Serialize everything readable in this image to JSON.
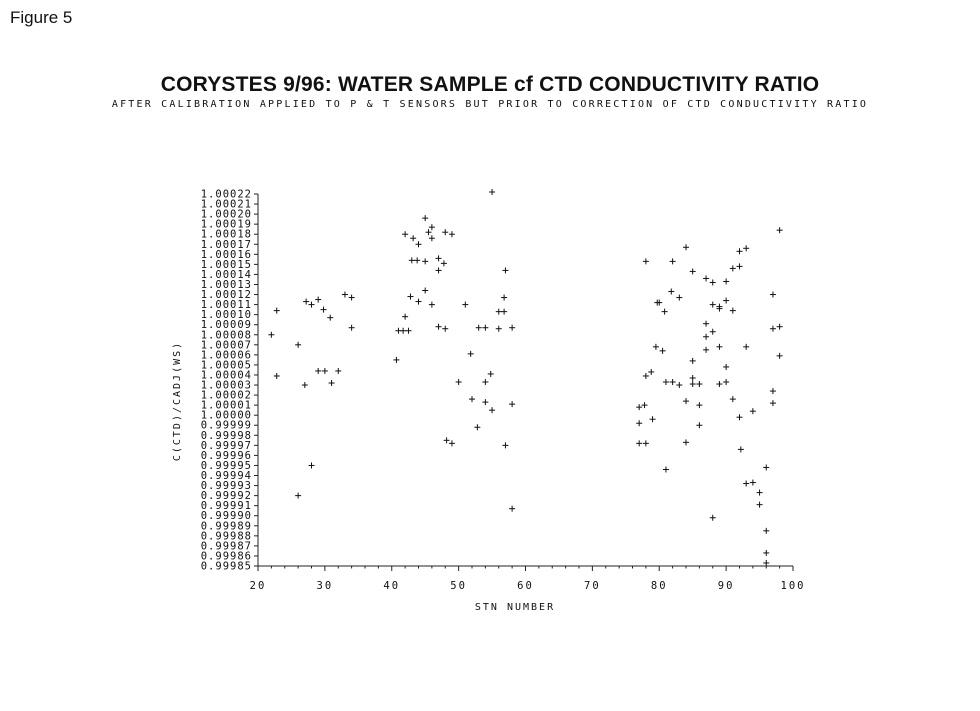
{
  "figure_label": "Figure 5",
  "chart_data": {
    "type": "scatter",
    "title": "CORYSTES 9/96: WATER SAMPLE cf CTD CONDUCTIVITY RATIO",
    "subtitle": "AFTER CALIBRATION APPLIED TO P & T SENSORS BUT PRIOR TO CORRECTION OF CTD CONDUCTIVITY RATIO",
    "xlabel": "STN NUMBER",
    "ylabel": "C(CTD)/CADJ(WS)",
    "xlim": [
      20,
      100
    ],
    "ylim": [
      0.99985,
      1.00022
    ],
    "x_ticks": [
      "20",
      "30",
      "40",
      "50",
      "60",
      "70",
      "80",
      "90",
      "100"
    ],
    "y_ticks": [
      "1.00022",
      "1.00021",
      "1.00020",
      "1.00019",
      "1.00018",
      "1.00017",
      "1.00016",
      "1.00015",
      "1.00014",
      "1.00013",
      "1.00012",
      "1.00011",
      "1.00010",
      "1.00009",
      "1.00008",
      "1.00007",
      "1.00006",
      "1.00005",
      "1.00004",
      "1.00003",
      "1.00002",
      "1.00001",
      "1.00000",
      "0.99999",
      "0.99998",
      "0.99997",
      "0.99996",
      "0.99995",
      "0.99994",
      "0.99993",
      "0.99992",
      "0.99991",
      "0.99990",
      "0.99989",
      "0.99988",
      "0.99987",
      "0.99986",
      "0.99985"
    ],
    "marker": "+",
    "grid": false,
    "points": [
      [
        22,
        1.00008
      ],
      [
        22.8,
        1.000104
      ],
      [
        22.8,
        1.000039
      ],
      [
        26,
        1.00007
      ],
      [
        26,
        0.99992
      ],
      [
        27,
        1.00003
      ],
      [
        27.2,
        1.000113
      ],
      [
        28,
        1.00011
      ],
      [
        28,
        0.99995
      ],
      [
        29,
        1.000115
      ],
      [
        29,
        1.000044
      ],
      [
        29.8,
        1.000105
      ],
      [
        30,
        1.000044
      ],
      [
        30.8,
        1.000097
      ],
      [
        31,
        1.000032
      ],
      [
        32,
        1.000044
      ],
      [
        33,
        1.00012
      ],
      [
        34,
        1.000117
      ],
      [
        34,
        1.000087
      ],
      [
        40.7,
        1.000055
      ],
      [
        41,
        1.000084
      ],
      [
        41.7,
        1.000084
      ],
      [
        42,
        1.000098
      ],
      [
        42,
        1.00018
      ],
      [
        42.5,
        1.000084
      ],
      [
        42.8,
        1.000118
      ],
      [
        43,
        1.000154
      ],
      [
        43.2,
        1.000176
      ],
      [
        43.8,
        1.000154
      ],
      [
        44,
        1.00017
      ],
      [
        44,
        1.000113
      ],
      [
        45,
        1.000153
      ],
      [
        45,
        1.000196
      ],
      [
        45,
        1.000124
      ],
      [
        45.5,
        1.000182
      ],
      [
        46,
        1.000187
      ],
      [
        46,
        1.000176
      ],
      [
        46,
        1.00011
      ],
      [
        47,
        1.000156
      ],
      [
        47,
        1.000088
      ],
      [
        47,
        1.000144
      ],
      [
        47.8,
        1.000151
      ],
      [
        48,
        1.000182
      ],
      [
        48,
        1.000086
      ],
      [
        48.2,
        0.999975
      ],
      [
        49,
        1.00018
      ],
      [
        49,
        0.999972
      ],
      [
        50,
        1.000033
      ],
      [
        51,
        1.00011
      ],
      [
        51.8,
        1.000061
      ],
      [
        52,
        1.000016
      ],
      [
        52.8,
        0.999988
      ],
      [
        53,
        1.000087
      ],
      [
        54,
        1.000087
      ],
      [
        54,
        1.000033
      ],
      [
        54,
        1.000013
      ],
      [
        54.8,
        1.000041
      ],
      [
        55,
        1.000005
      ],
      [
        55,
        1.000222
      ],
      [
        56,
        1.000086
      ],
      [
        56,
        1.000103
      ],
      [
        56.8,
        1.000103
      ],
      [
        56.8,
        1.000117
      ],
      [
        57,
        1.000144
      ],
      [
        57,
        0.99997
      ],
      [
        58,
        1.000087
      ],
      [
        58,
        1.000011
      ],
      [
        58,
        0.999907
      ],
      [
        77,
        1.000008
      ],
      [
        77,
        0.999992
      ],
      [
        77,
        0.999972
      ],
      [
        77.8,
        1.00001
      ],
      [
        78,
        1.000153
      ],
      [
        78,
        1.000039
      ],
      [
        78,
        0.999972
      ],
      [
        78.8,
        1.000043
      ],
      [
        79,
        0.999996
      ],
      [
        79.5,
        1.000068
      ],
      [
        79.7,
        1.000112
      ],
      [
        80,
        1.000112
      ],
      [
        80.5,
        1.000064
      ],
      [
        80.8,
        1.000103
      ],
      [
        81,
        1.000033
      ],
      [
        81,
        0.999946
      ],
      [
        81.8,
        1.000123
      ],
      [
        82,
        1.000153
      ],
      [
        82,
        1.000033
      ],
      [
        83,
        1.000117
      ],
      [
        83,
        1.00003
      ],
      [
        84,
        1.000167
      ],
      [
        84,
        1.000014
      ],
      [
        84,
        0.999973
      ],
      [
        85,
        1.000143
      ],
      [
        85,
        1.000054
      ],
      [
        85,
        1.000037
      ],
      [
        85,
        1.000031
      ],
      [
        86,
        1.000031
      ],
      [
        86,
        1.00001
      ],
      [
        86,
        0.99999
      ],
      [
        87,
        1.000136
      ],
      [
        87,
        1.000091
      ],
      [
        87,
        1.000078
      ],
      [
        87,
        1.000065
      ],
      [
        88,
        1.000132
      ],
      [
        88,
        1.00011
      ],
      [
        88,
        1.000083
      ],
      [
        88,
        0.999898
      ],
      [
        89,
        1.000108
      ],
      [
        89,
        1.000106
      ],
      [
        89,
        1.000068
      ],
      [
        89,
        1.000031
      ],
      [
        90,
        1.000133
      ],
      [
        90,
        1.000114
      ],
      [
        90,
        1.000048
      ],
      [
        90,
        1.000033
      ],
      [
        91,
        1.000146
      ],
      [
        91,
        1.000104
      ],
      [
        91,
        1.000016
      ],
      [
        92,
        1.000148
      ],
      [
        92,
        1.000163
      ],
      [
        92,
        0.999998
      ],
      [
        92.2,
        0.999966
      ],
      [
        93,
        1.000166
      ],
      [
        93,
        1.000068
      ],
      [
        93,
        0.999932
      ],
      [
        94,
        0.999933
      ],
      [
        94,
        1.000004
      ],
      [
        95,
        0.999923
      ],
      [
        95,
        0.999911
      ],
      [
        96,
        0.999948
      ],
      [
        96,
        0.999885
      ],
      [
        96,
        0.999863
      ],
      [
        96,
        0.999853
      ],
      [
        97,
        1.00012
      ],
      [
        97,
        1.000086
      ],
      [
        97,
        1.000024
      ],
      [
        97,
        1.000012
      ],
      [
        98,
        1.000184
      ],
      [
        98,
        1.000088
      ],
      [
        98,
        1.000059
      ]
    ]
  }
}
